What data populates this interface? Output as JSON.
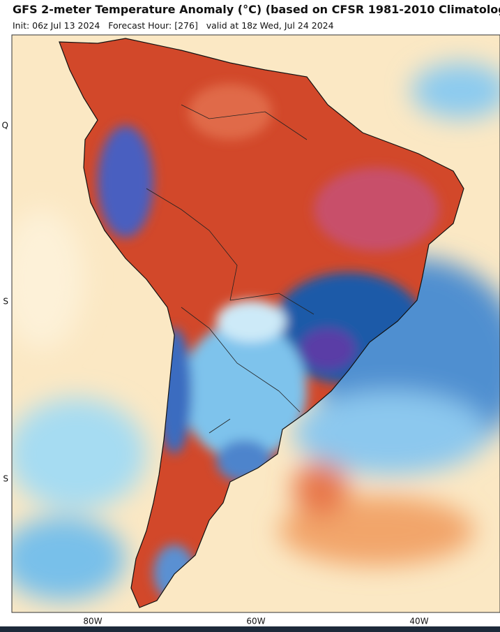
{
  "header": {
    "title": "GFS 2-meter Temperature Anomaly (°C) (based on CFSR 1981-2010 Climatolog",
    "subtitle": "Init: 06z Jul 13 2024   Forecast Hour: [276]   valid at 18z Wed, Jul 24 2024"
  },
  "map": {
    "lat_labels": [
      "Q",
      "S",
      "S"
    ],
    "lon_labels": [
      "80W",
      "60W",
      "40W"
    ]
  }
}
